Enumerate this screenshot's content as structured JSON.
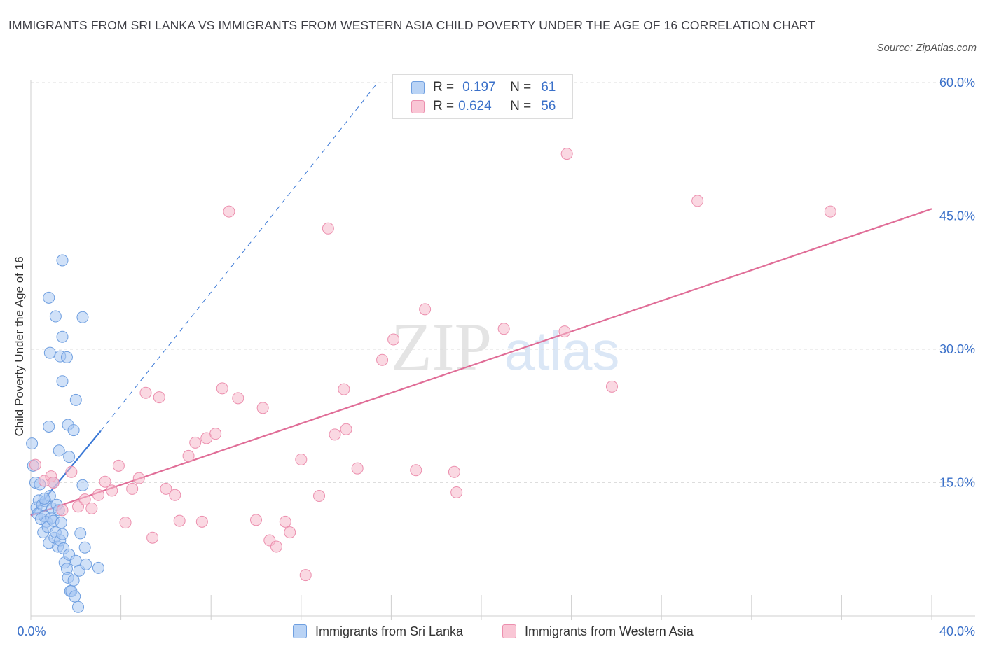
{
  "title": "IMMIGRANTS FROM SRI LANKA VS IMMIGRANTS FROM WESTERN ASIA CHILD POVERTY UNDER THE AGE OF 16 CORRELATION CHART",
  "source": "Source: ZipAtlas.com",
  "colors": {
    "blue": "#3a78d6",
    "blue_fill": "#a9c8f2",
    "pink": "#e06d97",
    "pink_fill": "#f6b8cb",
    "axis_label": "#3a70c9",
    "grid": "#dddddd"
  },
  "legend": {
    "r_label": "R =",
    "n_label": "N =",
    "series": [
      {
        "r": "0.197",
        "n": "61"
      },
      {
        "r": "0.624",
        "n": "56"
      }
    ]
  },
  "watermark": {
    "zip": "ZIP",
    "atlas": "atlas"
  },
  "chart_data": {
    "type": "scatter",
    "title": "IMMIGRANTS FROM SRI LANKA VS IMMIGRANTS FROM WESTERN ASIA CHILD POVERTY UNDER THE AGE OF 16 CORRELATION CHART",
    "xlabel": "",
    "ylabel": "Child Poverty Under the Age of 16",
    "xlim": [
      0,
      40
    ],
    "ylim": [
      0,
      60
    ],
    "x_tick_labels": [
      "0.0%",
      "40.0%"
    ],
    "y_ticks": [
      15,
      30,
      45,
      60
    ],
    "y_tick_labels": [
      "15.0%",
      "30.0%",
      "45.0%",
      "60.0%"
    ],
    "legend_position": "top-center",
    "series": [
      {
        "name": "Immigrants from Sri Lanka",
        "r": 0.197,
        "n": 61,
        "points": [
          [
            0.05,
            19.4
          ],
          [
            0.1,
            16.9
          ],
          [
            0.2,
            15.0
          ],
          [
            0.25,
            12.2
          ],
          [
            0.3,
            11.5
          ],
          [
            0.35,
            13.0
          ],
          [
            0.4,
            14.8
          ],
          [
            0.45,
            10.9
          ],
          [
            0.5,
            12.5
          ],
          [
            0.55,
            9.4
          ],
          [
            0.6,
            11.2
          ],
          [
            0.65,
            12.9
          ],
          [
            0.7,
            10.6
          ],
          [
            0.75,
            10.0
          ],
          [
            0.8,
            8.2
          ],
          [
            0.85,
            13.5
          ],
          [
            0.9,
            11.0
          ],
          [
            0.95,
            12.1
          ],
          [
            1.0,
            10.7
          ],
          [
            1.05,
            8.8
          ],
          [
            1.1,
            9.4
          ],
          [
            1.15,
            12.5
          ],
          [
            1.2,
            7.8
          ],
          [
            1.25,
            11.9
          ],
          [
            1.3,
            8.5
          ],
          [
            1.35,
            10.5
          ],
          [
            1.4,
            9.2
          ],
          [
            1.45,
            7.6
          ],
          [
            1.5,
            6.0
          ],
          [
            1.6,
            5.3
          ],
          [
            1.65,
            4.3
          ],
          [
            1.7,
            6.9
          ],
          [
            1.75,
            2.8
          ],
          [
            1.8,
            2.8
          ],
          [
            1.9,
            4.0
          ],
          [
            1.95,
            2.2
          ],
          [
            2.0,
            6.2
          ],
          [
            2.1,
            1.0
          ],
          [
            2.15,
            5.1
          ],
          [
            2.2,
            9.3
          ],
          [
            2.3,
            14.7
          ],
          [
            2.4,
            7.7
          ],
          [
            2.45,
            5.8
          ],
          [
            0.8,
            21.3
          ],
          [
            0.85,
            29.6
          ],
          [
            0.8,
            35.8
          ],
          [
            1.1,
            33.7
          ],
          [
            1.3,
            29.2
          ],
          [
            1.25,
            18.6
          ],
          [
            1.4,
            26.4
          ],
          [
            1.4,
            31.4
          ],
          [
            1.4,
            40.0
          ],
          [
            1.6,
            29.1
          ],
          [
            1.65,
            21.5
          ],
          [
            1.7,
            17.9
          ],
          [
            1.9,
            20.9
          ],
          [
            2.0,
            24.3
          ],
          [
            2.3,
            33.6
          ],
          [
            3.0,
            5.4
          ],
          [
            0.6,
            13.2
          ],
          [
            1.0,
            15.0
          ]
        ]
      },
      {
        "name": "Immigrants from Western Asia",
        "r": 0.624,
        "n": 56,
        "points": [
          [
            0.2,
            17.0
          ],
          [
            0.6,
            15.2
          ],
          [
            0.9,
            15.7
          ],
          [
            1.0,
            15.0
          ],
          [
            1.4,
            11.9
          ],
          [
            1.8,
            16.2
          ],
          [
            2.1,
            12.3
          ],
          [
            2.4,
            13.1
          ],
          [
            2.7,
            12.1
          ],
          [
            3.0,
            13.6
          ],
          [
            3.3,
            15.1
          ],
          [
            3.6,
            14.1
          ],
          [
            3.9,
            16.9
          ],
          [
            4.2,
            10.5
          ],
          [
            4.5,
            14.3
          ],
          [
            4.8,
            15.5
          ],
          [
            5.1,
            25.1
          ],
          [
            5.4,
            8.8
          ],
          [
            5.7,
            24.6
          ],
          [
            6.0,
            14.3
          ],
          [
            6.4,
            13.6
          ],
          [
            6.6,
            10.7
          ],
          [
            7.0,
            18.0
          ],
          [
            7.3,
            19.5
          ],
          [
            7.6,
            10.6
          ],
          [
            7.8,
            20.0
          ],
          [
            8.2,
            20.5
          ],
          [
            8.5,
            25.6
          ],
          [
            8.8,
            45.5
          ],
          [
            9.2,
            24.5
          ],
          [
            10.0,
            10.8
          ],
          [
            10.3,
            23.4
          ],
          [
            10.6,
            8.5
          ],
          [
            10.9,
            7.8
          ],
          [
            11.3,
            10.6
          ],
          [
            11.5,
            9.4
          ],
          [
            12.0,
            17.6
          ],
          [
            12.2,
            4.6
          ],
          [
            12.8,
            13.5
          ],
          [
            13.2,
            43.6
          ],
          [
            13.5,
            20.4
          ],
          [
            13.9,
            25.5
          ],
          [
            14.0,
            21.0
          ],
          [
            14.5,
            16.6
          ],
          [
            15.6,
            28.8
          ],
          [
            16.1,
            31.1
          ],
          [
            17.1,
            16.4
          ],
          [
            17.5,
            34.5
          ],
          [
            18.8,
            16.2
          ],
          [
            18.9,
            13.9
          ],
          [
            21.0,
            32.3
          ],
          [
            23.7,
            32.0
          ],
          [
            23.8,
            52.0
          ],
          [
            25.8,
            25.8
          ],
          [
            29.6,
            46.7
          ],
          [
            35.5,
            45.5
          ]
        ]
      }
    ],
    "trend_lines": [
      {
        "series": "Immigrants from Sri Lanka",
        "style": "solid",
        "from": [
          0,
          11.3
        ],
        "to": [
          3.1,
          20.8
        ]
      },
      {
        "series": "Immigrants from Sri Lanka",
        "style": "dashed",
        "from": [
          3.1,
          20.8
        ],
        "to": [
          15.4,
          60.0
        ]
      },
      {
        "series": "Immigrants from Western Asia",
        "style": "solid",
        "from": [
          0,
          11.3
        ],
        "to": [
          40,
          45.8
        ]
      }
    ]
  }
}
